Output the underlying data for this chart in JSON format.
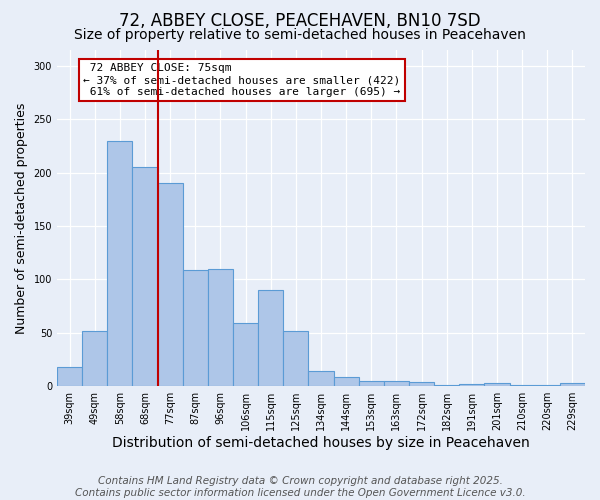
{
  "title": "72, ABBEY CLOSE, PEACEHAVEN, BN10 7SD",
  "subtitle": "Size of property relative to semi-detached houses in Peacehaven",
  "xlabel": "Distribution of semi-detached houses by size in Peacehaven",
  "ylabel": "Number of semi-detached properties",
  "categories": [
    "39sqm",
    "49sqm",
    "58sqm",
    "68sqm",
    "77sqm",
    "87sqm",
    "96sqm",
    "106sqm",
    "115sqm",
    "125sqm",
    "134sqm",
    "144sqm",
    "153sqm",
    "163sqm",
    "172sqm",
    "182sqm",
    "191sqm",
    "201sqm",
    "210sqm",
    "220sqm",
    "229sqm"
  ],
  "values": [
    18,
    52,
    230,
    205,
    190,
    109,
    110,
    59,
    90,
    52,
    14,
    9,
    5,
    5,
    4,
    1,
    2,
    3,
    1,
    1,
    3
  ],
  "bar_color": "#aec6e8",
  "bar_edge_color": "#5b9bd5",
  "property_label": "72 ABBEY CLOSE: 75sqm",
  "pct_smaller": 37,
  "pct_larger": 61,
  "n_smaller": 422,
  "n_larger": 695,
  "vline_color": "#c00000",
  "annotation_box_color": "#c00000",
  "ylim": [
    0,
    315
  ],
  "yticks": [
    0,
    50,
    100,
    150,
    200,
    250,
    300
  ],
  "footnote1": "Contains HM Land Registry data © Crown copyright and database right 2025.",
  "footnote2": "Contains public sector information licensed under the Open Government Licence v3.0.",
  "background_color": "#e8eef8",
  "title_fontsize": 12,
  "subtitle_fontsize": 10,
  "xlabel_fontsize": 10,
  "ylabel_fontsize": 9,
  "tick_fontsize": 7,
  "footnote_fontsize": 7.5
}
